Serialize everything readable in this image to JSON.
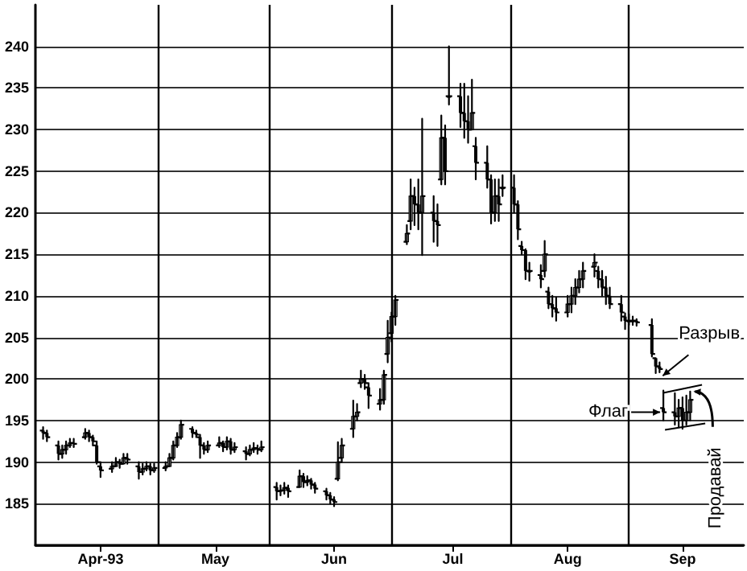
{
  "chart_data": {
    "type": "candlestick",
    "color": "#000000",
    "x": [
      "1993-04-01",
      "1993-04-02",
      "1993-04-05",
      "1993-04-06",
      "1993-04-07",
      "1993-04-08",
      "1993-04-09",
      "1993-04-12",
      "1993-04-13",
      "1993-04-14",
      "1993-04-15",
      "1993-04-16",
      "1993-04-19",
      "1993-04-20",
      "1993-04-21",
      "1993-04-22",
      "1993-04-23",
      "1993-04-26",
      "1993-04-27",
      "1993-04-28",
      "1993-04-29",
      "1993-04-30",
      "1993-05-03",
      "1993-05-04",
      "1993-05-05",
      "1993-05-06",
      "1993-05-07",
      "1993-05-10",
      "1993-05-11",
      "1993-05-12",
      "1993-05-13",
      "1993-05-14",
      "1993-05-17",
      "1993-05-18",
      "1993-05-19",
      "1993-05-20",
      "1993-05-21",
      "1993-05-24",
      "1993-05-25",
      "1993-05-26",
      "1993-05-27",
      "1993-05-28",
      "1993-06-01",
      "1993-06-02",
      "1993-06-03",
      "1993-06-04",
      "1993-06-07",
      "1993-06-08",
      "1993-06-09",
      "1993-06-10",
      "1993-06-11",
      "1993-06-14",
      "1993-06-15",
      "1993-06-16",
      "1993-06-17",
      "1993-06-18",
      "1993-06-21",
      "1993-06-22",
      "1993-06-23",
      "1993-06-24",
      "1993-06-25",
      "1993-06-28",
      "1993-06-29",
      "1993-06-30",
      "1993-07-01",
      "1993-07-02",
      "1993-07-05",
      "1993-07-06",
      "1993-07-07",
      "1993-07-08",
      "1993-07-09",
      "1993-07-12",
      "1993-07-13",
      "1993-07-14",
      "1993-07-15",
      "1993-07-16",
      "1993-07-19",
      "1993-07-20",
      "1993-07-21",
      "1993-07-22",
      "1993-07-23",
      "1993-07-26",
      "1993-07-27",
      "1993-07-28",
      "1993-07-29",
      "1993-07-30",
      "1993-08-02",
      "1993-08-03",
      "1993-08-04",
      "1993-08-05",
      "1993-08-06",
      "1993-08-09",
      "1993-08-10",
      "1993-08-11",
      "1993-08-12",
      "1993-08-13",
      "1993-08-16",
      "1993-08-17",
      "1993-08-18",
      "1993-08-19",
      "1993-08-20",
      "1993-08-23",
      "1993-08-24",
      "1993-08-25",
      "1993-08-26",
      "1993-08-27",
      "1993-08-30",
      "1993-08-31",
      "1993-09-01",
      "1993-09-02",
      "1993-09-03",
      "1993-09-07",
      "1993-09-08",
      "1993-09-09",
      "1993-09-10",
      "1993-09-13",
      "1993-09-14",
      "1993-09-15",
      "1993-09-16",
      "1993-09-17"
    ],
    "ohlc": [
      [
        193.8,
        194.2,
        192.8,
        193.5
      ],
      [
        193.5,
        193.8,
        192.5,
        193
      ],
      [
        192,
        192.5,
        190.3,
        191
      ],
      [
        191,
        192,
        190.5,
        191.5
      ],
      [
        191.5,
        192.5,
        191,
        192
      ],
      [
        192,
        192.8,
        191.8,
        192.3
      ],
      [
        192.3,
        192.8,
        191.8,
        192.2
      ],
      [
        193,
        194,
        192.8,
        193.5
      ],
      [
        193.5,
        193.8,
        192.5,
        193
      ],
      [
        193,
        193.2,
        192,
        192.5
      ],
      [
        192,
        192.5,
        189.8,
        190
      ],
      [
        189.5,
        190,
        188.2,
        189
      ],
      [
        189.2,
        190,
        188.8,
        189.5
      ],
      [
        189.5,
        190.5,
        189.5,
        190
      ],
      [
        190,
        190.3,
        189.3,
        189.8
      ],
      [
        189.8,
        191,
        189.8,
        190.5
      ],
      [
        190.5,
        191,
        189.8,
        190.3
      ],
      [
        189.5,
        190,
        188,
        188.8
      ],
      [
        188.8,
        189.8,
        188.5,
        189.2
      ],
      [
        189.2,
        190,
        189,
        189.5
      ],
      [
        189.5,
        189.8,
        188.5,
        189
      ],
      [
        189,
        189.8,
        188.8,
        189.3
      ],
      [
        189.3,
        190,
        189,
        189.5
      ],
      [
        189.5,
        191,
        189.5,
        190.5
      ],
      [
        190.5,
        192.5,
        190.3,
        192
      ],
      [
        192,
        193.5,
        191.8,
        193
      ],
      [
        193,
        195,
        192.8,
        194.5
      ],
      [
        194,
        194.2,
        193,
        193.5
      ],
      [
        193.5,
        193.8,
        193,
        193.3
      ],
      [
        193,
        193.3,
        190.5,
        192
      ],
      [
        192,
        192.3,
        191,
        191.5
      ],
      [
        191.5,
        192.5,
        191.2,
        192
      ],
      [
        192,
        193,
        191.8,
        192.3
      ],
      [
        192.3,
        192.5,
        191.3,
        191.8
      ],
      [
        191.8,
        193,
        191.5,
        192.5
      ],
      [
        192.5,
        192.8,
        191,
        191.5
      ],
      [
        191.5,
        192.3,
        191.2,
        191.8
      ],
      [
        191.3,
        191.8,
        190.3,
        191
      ],
      [
        191,
        192,
        190.8,
        191.5
      ],
      [
        191.5,
        192.3,
        191.2,
        191.7
      ],
      [
        191.7,
        192,
        191,
        191.5
      ],
      [
        191.5,
        192.5,
        191.3,
        191.8
      ],
      [
        187,
        187.5,
        185.5,
        186.5
      ],
      [
        186.5,
        187.2,
        186,
        186.6
      ],
      [
        186.6,
        187.5,
        186.2,
        186.9
      ],
      [
        186.9,
        187.2,
        185.8,
        186.5
      ],
      [
        187,
        189,
        187,
        188.3
      ],
      [
        188.3,
        188.6,
        187,
        187.6
      ],
      [
        187.6,
        188.3,
        187.2,
        187.8
      ],
      [
        187.8,
        188,
        186.8,
        187.3
      ],
      [
        187.3,
        187.5,
        186.3,
        186.8
      ],
      [
        186.5,
        186.8,
        185.5,
        186
      ],
      [
        186,
        186.3,
        185,
        185.5
      ],
      [
        185.5,
        185.8,
        184.7,
        185.2
      ],
      [
        188,
        192.4,
        187.8,
        190
      ],
      [
        190.5,
        192.8,
        190,
        192
      ],
      [
        194,
        197.4,
        193,
        195.5
      ],
      [
        195.5,
        197,
        195,
        196
      ],
      [
        199.5,
        201,
        199,
        200
      ],
      [
        200,
        200.5,
        198.8,
        199.5
      ],
      [
        199,
        199.5,
        196.5,
        198
      ],
      [
        197,
        198.8,
        196.3,
        197.5
      ],
      [
        197.5,
        201,
        197,
        200.5
      ],
      [
        203,
        207,
        202,
        205
      ],
      [
        205.5,
        208,
        204.5,
        207.5
      ],
      [
        207.5,
        210,
        206.5,
        209.5
      ],
      [
        216.5,
        218.5,
        216.2,
        217.5
      ],
      [
        219,
        224,
        218,
        222
      ],
      [
        222,
        223,
        218.5,
        221
      ],
      [
        221,
        224,
        218,
        220
      ],
      [
        220,
        231.3,
        214.9,
        222
      ],
      [
        220,
        222,
        216.5,
        219
      ],
      [
        219,
        221,
        216,
        218.5
      ],
      [
        224,
        231.7,
        223.4,
        229
      ],
      [
        229,
        230.5,
        223.4,
        225
      ],
      [
        234,
        240,
        233,
        234
      ],
      [
        234,
        235.5,
        230.3,
        232
      ],
      [
        232,
        235.5,
        229,
        231
      ],
      [
        231,
        234,
        228.4,
        230
      ],
      [
        230,
        236,
        230,
        232
      ],
      [
        228,
        229,
        224,
        226
      ],
      [
        226,
        228,
        223,
        224
      ],
      [
        224,
        224.5,
        218.7,
        220
      ],
      [
        220,
        224,
        219,
        222
      ],
      [
        222,
        224,
        219,
        221
      ],
      [
        223,
        224.5,
        222,
        223
      ],
      [
        223,
        224.5,
        220,
        221
      ],
      [
        221,
        221.4,
        216.8,
        218
      ],
      [
        216,
        216.5,
        215,
        215.5
      ],
      [
        215.5,
        215.6,
        212,
        213
      ],
      [
        213,
        214,
        211.8,
        213
      ],
      [
        212.5,
        213.7,
        211,
        212
      ],
      [
        213,
        216.6,
        212.3,
        215
      ],
      [
        210.5,
        211,
        208.5,
        209
      ],
      [
        209,
        210,
        207.5,
        208.5
      ],
      [
        208.5,
        209.8,
        207,
        208
      ],
      [
        208,
        210,
        207.5,
        209
      ],
      [
        209,
        211,
        208,
        210
      ],
      [
        210,
        212,
        209,
        211
      ],
      [
        211,
        213,
        210.4,
        212
      ],
      [
        212,
        214,
        211,
        213
      ],
      [
        213.5,
        215,
        212.3,
        214
      ],
      [
        213,
        213.5,
        211,
        212
      ],
      [
        212,
        213,
        210,
        211
      ],
      [
        211,
        212.3,
        209,
        210
      ],
      [
        210,
        211,
        208.5,
        209
      ],
      [
        209,
        210,
        207,
        208
      ],
      [
        207.5,
        207.9,
        206,
        207
      ],
      [
        207,
        207.8,
        206.5,
        207
      ],
      [
        207,
        207.5,
        206.5,
        207
      ],
      [
        207,
        207.2,
        206.4,
        206.8
      ],
      [
        206.5,
        207.2,
        202.7,
        203
      ],
      [
        202.5,
        202.5,
        200.7,
        201.5
      ],
      [
        201.5,
        202,
        200.8,
        201.2
      ],
      [
        196.5,
        198.6,
        195,
        196
      ],
      [
        196,
        198.3,
        194.5,
        195.5
      ],
      [
        195.5,
        197.5,
        194.2,
        196.5
      ],
      [
        196.5,
        197.8,
        194,
        195
      ],
      [
        195,
        198,
        194.5,
        196
      ],
      [
        196,
        198.5,
        195,
        197.5
      ]
    ],
    "xlim": [
      "1993-03-30",
      "1993-10-01"
    ],
    "xticks": [
      {
        "value": "1993-04-16",
        "label": "Apr-93"
      },
      {
        "value": "1993-05-16",
        "label": "May"
      },
      {
        "value": "1993-06-16",
        "label": "Jun"
      },
      {
        "value": "1993-07-17",
        "label": "Jul"
      },
      {
        "value": "1993-08-16",
        "label": "Aug"
      },
      {
        "value": "1993-09-15",
        "label": "Sep"
      }
    ],
    "ylim": [
      180,
      245
    ],
    "yticks": [
      {
        "value": 180,
        "label": null
      },
      185,
      190,
      195,
      200,
      205,
      210,
      215,
      220,
      225,
      230,
      235,
      240
    ],
    "grid": "y",
    "ref_lines": [
      {
        "axis": "x",
        "value": "1993-05-01",
        "color": "#000000"
      },
      {
        "axis": "x",
        "value": "1993-05-30",
        "color": "#000000"
      },
      {
        "axis": "x",
        "value": "1993-07-01",
        "color": "#000000"
      },
      {
        "axis": "x",
        "value": "1993-08-01",
        "color": "#000000"
      },
      {
        "axis": "x",
        "value": "1993-09-01",
        "color": "#000000"
      }
    ],
    "annotations": [
      {
        "text": "Разрыв",
        "x": "1993-09-09",
        "y": 200
      },
      {
        "text": "Флаг",
        "x": "1993-09-10",
        "y": 196
      },
      {
        "text": "Продавай",
        "x": "1993-09-17",
        "y": 198.5
      }
    ]
  }
}
